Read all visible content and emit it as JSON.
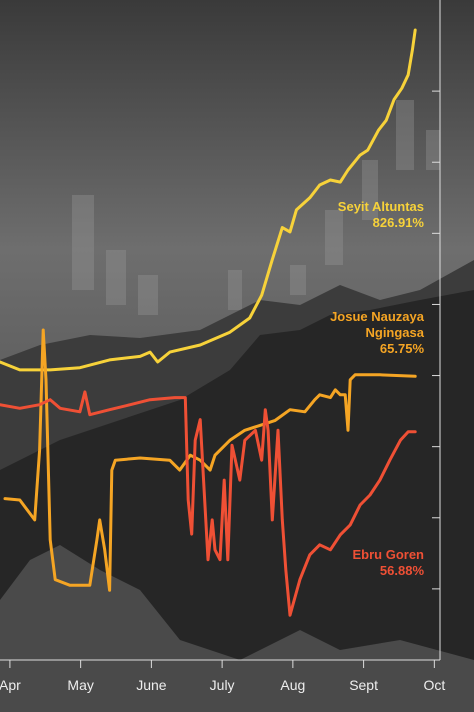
{
  "chart_data": {
    "type": "line",
    "xlim": [
      -0.14,
      6.08
    ],
    "xticks": [
      {
        "value": 0,
        "label": "Apr"
      },
      {
        "value": 1,
        "label": "May"
      },
      {
        "value": 2,
        "label": "June"
      },
      {
        "value": 3,
        "label": "July"
      },
      {
        "value": 4,
        "label": "Aug"
      },
      {
        "value": 5,
        "label": "Sept"
      },
      {
        "value": 6,
        "label": "Oct"
      }
    ],
    "ylim": [
      0,
      9
    ],
    "yticks": [
      0,
      1,
      2,
      3,
      4,
      5,
      6,
      7,
      8
    ],
    "series": [
      {
        "name": "Seyit Altuntas",
        "return_label": "826.91%",
        "color": "#f7d23a",
        "x": [
          -0.14,
          0.14,
          0.57,
          0.99,
          1.41,
          1.84,
          1.98,
          2.09,
          2.26,
          2.69,
          3.11,
          3.39,
          3.56,
          3.71,
          3.85,
          3.96,
          4.05,
          4.24,
          4.38,
          4.53,
          4.67,
          4.78,
          4.95,
          5.06,
          5.21,
          5.32,
          5.43,
          5.54,
          5.63,
          5.69,
          5.73
        ],
        "values": [
          4.19,
          4.08,
          4.08,
          4.11,
          4.22,
          4.27,
          4.33,
          4.19,
          4.33,
          4.43,
          4.61,
          4.81,
          5.13,
          5.63,
          6.08,
          6.02,
          6.33,
          6.5,
          6.68,
          6.75,
          6.72,
          6.89,
          7.1,
          7.17,
          7.45,
          7.59,
          7.88,
          8.04,
          8.23,
          8.58,
          8.86
        ]
      },
      {
        "name": "Josue Nauzaya Ngingasa",
        "return_label": "65.75%",
        "color": "#f5a524",
        "x": [
          -0.07,
          0.14,
          0.35,
          0.42,
          0.47,
          0.51,
          0.57,
          0.64,
          0.85,
          1.13,
          1.23,
          1.27,
          1.34,
          1.41,
          1.44,
          1.49,
          1.84,
          2.26,
          2.4,
          2.55,
          2.69,
          2.83,
          2.9,
          3.11,
          3.32,
          3.54,
          3.75,
          3.96,
          4.17,
          4.31,
          4.38,
          4.53,
          4.6,
          4.67,
          4.74,
          4.78,
          4.81,
          4.88,
          5.23,
          5.73
        ],
        "values": [
          2.27,
          2.25,
          1.97,
          2.95,
          4.64,
          3.94,
          1.69,
          1.13,
          1.05,
          1.05,
          1.69,
          1.97,
          1.55,
          0.98,
          2.67,
          2.81,
          2.84,
          2.81,
          2.67,
          2.88,
          2.81,
          2.67,
          2.88,
          3.09,
          3.23,
          3.3,
          3.37,
          3.52,
          3.49,
          3.66,
          3.73,
          3.69,
          3.8,
          3.73,
          3.73,
          3.23,
          3.94,
          4.01,
          4.01,
          3.99
        ]
      },
      {
        "name": "Ebru Goren",
        "return_label": "56.88%",
        "color": "#ef5035",
        "x": [
          -0.14,
          0.14,
          0.42,
          0.57,
          0.71,
          0.99,
          1.06,
          1.13,
          1.41,
          1.7,
          1.98,
          2.33,
          2.48,
          2.52,
          2.57,
          2.62,
          2.69,
          2.8,
          2.86,
          2.9,
          2.97,
          3.03,
          3.08,
          3.14,
          3.25,
          3.32,
          3.47,
          3.56,
          3.61,
          3.65,
          3.71,
          3.79,
          3.85,
          3.9,
          3.96,
          4.1,
          4.24,
          4.38,
          4.53,
          4.67,
          4.81,
          4.95,
          5.09,
          5.23,
          5.37,
          5.52,
          5.63,
          5.73
        ],
        "values": [
          3.59,
          3.54,
          3.59,
          3.66,
          3.54,
          3.49,
          3.77,
          3.45,
          3.52,
          3.59,
          3.66,
          3.69,
          3.69,
          2.25,
          1.77,
          3.09,
          3.38,
          1.41,
          1.97,
          1.55,
          1.41,
          2.53,
          1.41,
          3.02,
          2.53,
          3.09,
          3.23,
          2.81,
          3.52,
          3.23,
          1.97,
          3.23,
          1.97,
          1.27,
          0.63,
          1.13,
          1.48,
          1.62,
          1.55,
          1.76,
          1.9,
          2.18,
          2.32,
          2.53,
          2.81,
          3.09,
          3.21,
          3.21
        ]
      }
    ]
  }
}
